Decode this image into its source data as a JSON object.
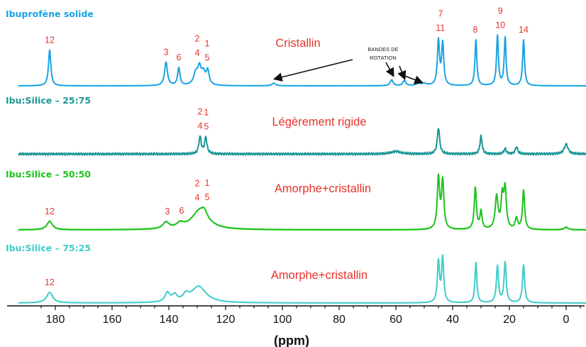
{
  "colors": {
    "solid": "#1aa3e4",
    "s2575": "#1b9795",
    "s5050": "#1dc31d",
    "s7525": "#3dcdc9",
    "labels": "#e8322b",
    "axis": "#111111"
  },
  "chart_data": {
    "type": "line",
    "xlabel": "(ppm)",
    "x_reversed": true,
    "xlim": [
      193,
      -10
    ],
    "x_ticks": [
      "180",
      "160",
      "140",
      "120",
      "100",
      "80",
      "60",
      "40",
      "20",
      "0"
    ],
    "annotation": {
      "text_line1": "BANDES DE",
      "text_line2": "ROTATION",
      "arrow_targets_ppm": [
        103,
        61,
        57,
        51
      ]
    },
    "series": [
      {
        "name": "Ibuprofène solide",
        "state_label": "Cristallin",
        "color": "#1aa3e4",
        "noise": 0.2,
        "peaks": [
          [
            182,
            55,
            0.5
          ],
          [
            141,
            36,
            0.6
          ],
          [
            136.5,
            27,
            0.5
          ],
          [
            130.5,
            18,
            0.9
          ],
          [
            129.2,
            24,
            0.7
          ],
          [
            127.8,
            18,
            0.8
          ],
          [
            126.3,
            21,
            0.6
          ],
          [
            103,
            4,
            0.8
          ],
          [
            61.5,
            9,
            0.6
          ],
          [
            57,
            8,
            0.6
          ],
          [
            52,
            3,
            1.0
          ],
          [
            50,
            3,
            1.0
          ],
          [
            45,
            68,
            0.45
          ],
          [
            43.5,
            64,
            0.45
          ],
          [
            31.8,
            70,
            0.4
          ],
          [
            24.2,
            76,
            0.4
          ],
          [
            21.5,
            73,
            0.4
          ],
          [
            15,
            70,
            0.4
          ]
        ],
        "peak_labels": [
          {
            "ppm": 182,
            "line1": "12",
            "line2": ""
          },
          {
            "ppm": 141,
            "line1": "3",
            "line2": ""
          },
          {
            "ppm": 136.5,
            "line1": "6",
            "line2": ""
          },
          {
            "ppm": 130,
            "line1": "2",
            "line2": "4"
          },
          {
            "ppm": 126.5,
            "line1": "1",
            "line2": "5"
          },
          {
            "ppm": 44.3,
            "line1": "7",
            "line2": "11"
          },
          {
            "ppm": 32,
            "line1": "8",
            "line2": ""
          },
          {
            "ppm": 23.2,
            "line1": "9",
            "line2": "10"
          },
          {
            "ppm": 15,
            "line1": "14",
            "line2": ""
          }
        ]
      },
      {
        "name": "Ibu:Silice – 25:75",
        "state_label": "Légèrement rigide",
        "color": "#1b9795",
        "noise": 2.0,
        "peaks": [
          [
            129,
            26,
            0.5
          ],
          [
            127,
            25,
            0.5
          ],
          [
            45,
            40,
            0.5
          ],
          [
            60,
            4,
            2.0
          ],
          [
            30,
            27,
            0.45
          ],
          [
            21.5,
            8,
            0.5
          ],
          [
            17.5,
            11,
            0.5
          ],
          [
            0,
            15,
            0.8
          ]
        ],
        "peak_labels": [
          {
            "ppm": 129,
            "line1": "2",
            "line2": "4"
          },
          {
            "ppm": 126.8,
            "line1": "1",
            "line2": "5"
          }
        ]
      },
      {
        "name": "Ibu:Silice – 50:50",
        "state_label": "Amorphe+cristallin",
        "color": "#1dc31d",
        "noise": 0.6,
        "peaks": [
          [
            182,
            13,
            1.2
          ],
          [
            141,
            10,
            1.3
          ],
          [
            136,
            7,
            1.5
          ],
          [
            129,
            30,
            3.5
          ],
          [
            127.5,
            8,
            1.0
          ],
          [
            45,
            78,
            0.5
          ],
          [
            43.5,
            73,
            0.5
          ],
          [
            32,
            64,
            0.45
          ],
          [
            30,
            27,
            0.45
          ],
          [
            24.5,
            50,
            0.6
          ],
          [
            22.5,
            48,
            0.5
          ],
          [
            21.5,
            60,
            0.5
          ],
          [
            17.5,
            17,
            0.5
          ],
          [
            15,
            60,
            0.45
          ],
          [
            0,
            4,
            0.8
          ]
        ],
        "peak_labels": [
          {
            "ppm": 182,
            "line1": "12",
            "line2": ""
          },
          {
            "ppm": 140.5,
            "line1": "3",
            "line2": ""
          },
          {
            "ppm": 135.5,
            "line1": "6",
            "line2": ""
          },
          {
            "ppm": 130,
            "line1": "2",
            "line2": "4"
          },
          {
            "ppm": 126.5,
            "line1": "1",
            "line2": "5"
          }
        ]
      },
      {
        "name": "Ibu:Silice – 75:25",
        "state_label": "Amorphe+cristallin",
        "color": "#3dcdc9",
        "noise": 0.2,
        "peaks": [
          [
            182,
            16,
            1.3
          ],
          [
            140.5,
            14,
            1.0
          ],
          [
            138,
            10,
            1.0
          ],
          [
            134,
            9,
            1.2
          ],
          [
            129.5,
            25,
            3.2
          ],
          [
            45,
            62,
            0.45
          ],
          [
            43.5,
            68,
            0.45
          ],
          [
            31.8,
            62,
            0.4
          ],
          [
            24.2,
            56,
            0.45
          ],
          [
            21.5,
            62,
            0.45
          ],
          [
            15,
            58,
            0.45
          ]
        ],
        "peak_labels": [
          {
            "ppm": 182,
            "line1": "12",
            "line2": ""
          }
        ]
      }
    ]
  }
}
